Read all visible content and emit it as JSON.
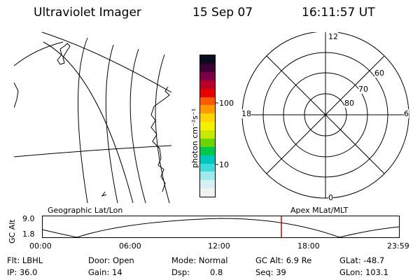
{
  "header": {
    "instrument": "Ultraviolet Imager",
    "date": "15 Sep 07",
    "time": "16:11:57 UT"
  },
  "colorbar": {
    "label": "photon cm⁻²s⁻¹",
    "tick_high": "100",
    "tick_low": "10",
    "colors": [
      "#f2f2f2",
      "#d6f0f2",
      "#9fe8ec",
      "#3fd8dc",
      "#00c8b8",
      "#00c84a",
      "#6ad400",
      "#c8e800",
      "#f4f000",
      "#ffd400",
      "#ff9a00",
      "#ff5a00",
      "#e80000",
      "#b80028",
      "#7a0046",
      "#3a0036",
      "#0a0a20"
    ]
  },
  "polar": {
    "labels": {
      "top": "12",
      "bottom": "0",
      "left": "18",
      "right": "6",
      "lat60": "60",
      "lat70": "70",
      "lat80": "80"
    }
  },
  "panels": {
    "left_title": "Geographic Lat/Lon",
    "right_title": "Apex MLat/MLT"
  },
  "altitude_plot": {
    "ylabel": "GC Alt",
    "ytick_top": "9.0",
    "ytick_bottom": "1.8",
    "xticks": [
      "00:00",
      "06:00",
      "12:00",
      "18:00",
      "23:59"
    ]
  },
  "info": {
    "filter": "Flt: LBHL",
    "door": "Door: Open",
    "mode": "Mode: Normal",
    "gc_alt": "GC Alt: 6.9 Re",
    "glat": "GLat: -48.7",
    "ip": "IP: 36.0",
    "gain": "Gain: 14",
    "dsp_label": "Dsp:",
    "dsp_value": "0.8",
    "seq": "Seq: 39",
    "glon": "GLon: 103.1"
  }
}
